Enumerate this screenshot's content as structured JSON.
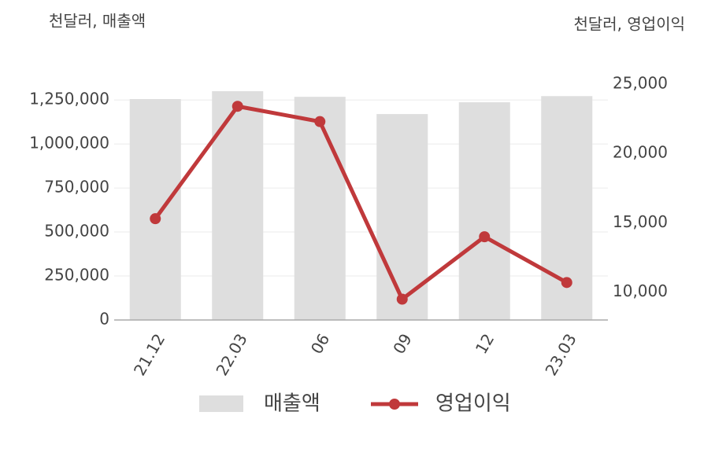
{
  "chart_data": {
    "type": "bar-line",
    "y_axis_title": "천달러, 매출액",
    "y2_axis_title": "천달러, 영업이익",
    "categories": [
      "21.12",
      "22.03",
      "06",
      "09",
      "12",
      "23.03"
    ],
    "series": [
      {
        "name": "매출액",
        "type": "bar",
        "color": "#dedede",
        "values": [
          1255000,
          1300000,
          1268000,
          1170000,
          1237000,
          1272000
        ]
      },
      {
        "name": "영업이익",
        "type": "line",
        "axis": "y2",
        "color": "#c0393b",
        "values": [
          15300,
          23400,
          22300,
          9500,
          14000,
          10700
        ]
      }
    ],
    "ylim": [
      0,
      1340000
    ],
    "yticks": [
      {
        "value": 0,
        "label": "0"
      },
      {
        "value": 250000,
        "label": "250,000"
      },
      {
        "value": 500000,
        "label": "500,000"
      },
      {
        "value": 750000,
        "label": "750,000"
      },
      {
        "value": 1000000,
        "label": "1,000,000"
      },
      {
        "value": 1250000,
        "label": "1,250,000"
      }
    ],
    "y2lim": [
      8000,
      25000
    ],
    "y2ticks": [
      {
        "value": 10000,
        "label": "10,000"
      },
      {
        "value": 15000,
        "label": "15,000"
      },
      {
        "value": 20000,
        "label": "20,000"
      },
      {
        "value": 25000,
        "label": "25,000"
      }
    ],
    "grid": true
  }
}
